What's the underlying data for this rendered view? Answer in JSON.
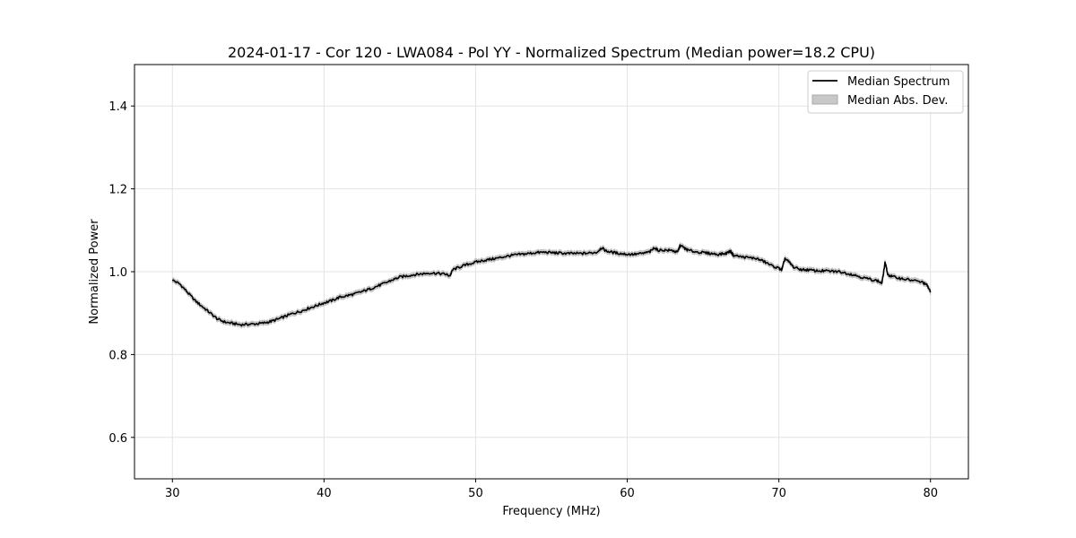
{
  "chart_data": {
    "type": "line",
    "title": "2024-01-17 - Cor 120 - LWA084 - Pol YY - Normalized Spectrum (Median power=18.2 CPU)",
    "xlabel": "Frequency (MHz)",
    "ylabel": "Normalized Power",
    "xlim": [
      27.5,
      82.5
    ],
    "ylim": [
      0.5,
      1.5
    ],
    "xticks": [
      30,
      40,
      50,
      60,
      70,
      80
    ],
    "yticks": [
      0.6,
      0.8,
      1.0,
      1.2,
      1.4
    ],
    "x_tick_labels": [
      "30",
      "40",
      "50",
      "60",
      "70",
      "80"
    ],
    "y_tick_labels": [
      "0.6",
      "0.8",
      "1.0",
      "1.2",
      "1.4"
    ],
    "grid": true,
    "legend_position": "top-right",
    "series": [
      {
        "name": "Median Spectrum",
        "color": "#000000",
        "points": [
          [
            30,
            0.98
          ],
          [
            30.5,
            0.97
          ],
          [
            31,
            0.95
          ],
          [
            31.5,
            0.93
          ],
          [
            32,
            0.915
          ],
          [
            32.5,
            0.9
          ],
          [
            33,
            0.885
          ],
          [
            33.5,
            0.878
          ],
          [
            34,
            0.875
          ],
          [
            34.5,
            0.872
          ],
          [
            35,
            0.873
          ],
          [
            35.5,
            0.874
          ],
          [
            36,
            0.876
          ],
          [
            36.5,
            0.88
          ],
          [
            37,
            0.886
          ],
          [
            37.5,
            0.893
          ],
          [
            38,
            0.9
          ],
          [
            38.5,
            0.905
          ],
          [
            39,
            0.912
          ],
          [
            39.5,
            0.918
          ],
          [
            40,
            0.925
          ],
          [
            40.5,
            0.93
          ],
          [
            41,
            0.938
          ],
          [
            41.5,
            0.942
          ],
          [
            42,
            0.946
          ],
          [
            42.5,
            0.952
          ],
          [
            43,
            0.958
          ],
          [
            43.5,
            0.965
          ],
          [
            44,
            0.972
          ],
          [
            44.5,
            0.98
          ],
          [
            45,
            0.987
          ],
          [
            45.5,
            0.99
          ],
          [
            46,
            0.993
          ],
          [
            46.5,
            0.995
          ],
          [
            47,
            0.997
          ],
          [
            47.5,
            0.996
          ],
          [
            48,
            0.994
          ],
          [
            48.3,
            0.99
          ],
          [
            48.5,
            1.005
          ],
          [
            49,
            1.012
          ],
          [
            49.5,
            1.018
          ],
          [
            50,
            1.023
          ],
          [
            50.5,
            1.027
          ],
          [
            51,
            1.03
          ],
          [
            51.5,
            1.033
          ],
          [
            52,
            1.037
          ],
          [
            52.5,
            1.04
          ],
          [
            53,
            1.042
          ],
          [
            53.5,
            1.044
          ],
          [
            54,
            1.046
          ],
          [
            54.5,
            1.047
          ],
          [
            55,
            1.046
          ],
          [
            55.5,
            1.045
          ],
          [
            56,
            1.044
          ],
          [
            56.5,
            1.044
          ],
          [
            57,
            1.044
          ],
          [
            57.5,
            1.045
          ],
          [
            58,
            1.047
          ],
          [
            58.3,
            1.058
          ],
          [
            58.6,
            1.05
          ],
          [
            59,
            1.047
          ],
          [
            59.5,
            1.044
          ],
          [
            60,
            1.042
          ],
          [
            60.5,
            1.042
          ],
          [
            61,
            1.044
          ],
          [
            61.5,
            1.048
          ],
          [
            61.8,
            1.058
          ],
          [
            62,
            1.052
          ],
          [
            62.5,
            1.052
          ],
          [
            63,
            1.051
          ],
          [
            63.3,
            1.046
          ],
          [
            63.5,
            1.064
          ],
          [
            63.8,
            1.056
          ],
          [
            64,
            1.052
          ],
          [
            64.5,
            1.048
          ],
          [
            65,
            1.046
          ],
          [
            65.5,
            1.044
          ],
          [
            66,
            1.042
          ],
          [
            66.5,
            1.044
          ],
          [
            66.8,
            1.05
          ],
          [
            67,
            1.04
          ],
          [
            67.5,
            1.036
          ],
          [
            68,
            1.034
          ],
          [
            68.5,
            1.032
          ],
          [
            69,
            1.025
          ],
          [
            69.5,
            1.015
          ],
          [
            70,
            1.008
          ],
          [
            70.2,
            1.004
          ],
          [
            70.4,
            1.032
          ],
          [
            70.7,
            1.022
          ],
          [
            71,
            1.01
          ],
          [
            71.5,
            1.005
          ],
          [
            72,
            1.004
          ],
          [
            72.5,
            1.002
          ],
          [
            73,
            1.002
          ],
          [
            73.5,
            1.001
          ],
          [
            74,
            1.0
          ],
          [
            74.5,
            0.996
          ],
          [
            75,
            0.992
          ],
          [
            75.5,
            0.986
          ],
          [
            76,
            0.982
          ],
          [
            76.5,
            0.978
          ],
          [
            76.8,
            0.972
          ],
          [
            77,
            1.022
          ],
          [
            77.2,
            0.992
          ],
          [
            77.5,
            0.988
          ],
          [
            78,
            0.984
          ],
          [
            78.5,
            0.981
          ],
          [
            79,
            0.978
          ],
          [
            79.5,
            0.974
          ],
          [
            79.8,
            0.966
          ],
          [
            80,
            0.95
          ]
        ]
      },
      {
        "name": "Median Abs. Dev.",
        "color": "#c8c8c8",
        "band_halfwidth": 0.006
      }
    ]
  }
}
